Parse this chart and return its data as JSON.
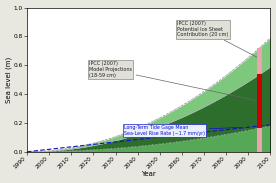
{
  "xlabel": "Year",
  "ylabel": "Sea level (m)",
  "xlim": [
    1990,
    2100
  ],
  "ylim": [
    0.0,
    1.0
  ],
  "xticks": [
    1990,
    2000,
    2010,
    2020,
    2030,
    2040,
    2050,
    2060,
    2070,
    2080,
    2090,
    2100
  ],
  "yticks": [
    0.0,
    0.2,
    0.4,
    0.6,
    0.8,
    1.0
  ],
  "fig_bg_color": "#e8e8e0",
  "plot_bg_color": "#ffffff",
  "year_start": 1990,
  "year_end": 2100,
  "ipcc_model_low": 0.18,
  "ipcc_model_high": 0.59,
  "ipcc_ice_sheet": 0.2,
  "tide_gauge_rate_mm_yr": 1.7,
  "bar_year": 2095,
  "color_light_green": "#7dc87d",
  "color_dark_green": "#2d6e2d",
  "color_mid_green": "#55a855",
  "color_pink": "#f0a0b0",
  "color_red": "#cc0000",
  "color_blue": "#1010cc",
  "color_gray_line": "#aaaaaa",
  "anno_box_fc": "#e0e0d8",
  "anno_box_ec": "#888888",
  "tide_box_fc": "#e8f0ff",
  "tide_box_ec": "#2020cc"
}
